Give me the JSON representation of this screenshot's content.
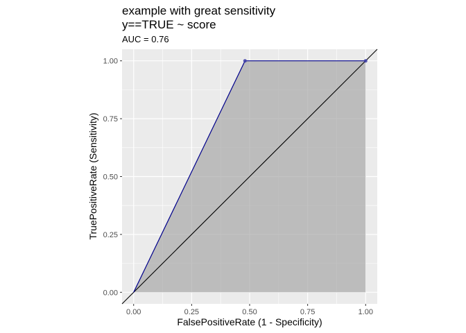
{
  "chart_data": {
    "type": "line",
    "title_lines": [
      "example with great sensitivity",
      "y==TRUE ~ score"
    ],
    "subtitle": "AUC = 0.76",
    "xlabel": "FalsePositiveRate (1 - Specificity)",
    "ylabel": "TruePositiveRate (Sensitivity)",
    "xlim": [
      -0.05,
      1.05
    ],
    "ylim": [
      -0.05,
      1.05
    ],
    "x_ticks": [
      0,
      0.25,
      0.5,
      0.75,
      1
    ],
    "y_ticks": [
      0,
      0.25,
      0.5,
      0.75,
      1
    ],
    "x_tick_labels": [
      "0.00",
      "0.25",
      "0.50",
      "0.75",
      "1.00"
    ],
    "y_tick_labels": [
      "0.00",
      "0.25",
      "0.50",
      "0.75",
      "1.00"
    ],
    "grid": true,
    "roc_points": [
      {
        "x": 0.0,
        "y": 0.0
      },
      {
        "x": 0.48,
        "y": 1.0
      },
      {
        "x": 1.0,
        "y": 1.0
      }
    ],
    "marked_points": [
      {
        "x": 0.48,
        "y": 1.0
      },
      {
        "x": 1.0,
        "y": 1.0
      }
    ],
    "diagonal": {
      "x": [
        0,
        1
      ],
      "y": [
        0,
        1
      ]
    },
    "colors": {
      "panel_bg": "#EBEBEB",
      "grid": "#FFFFFF",
      "area_fill": "#A8A8A8",
      "roc_line": "#00008B",
      "point": "#3F3FA8",
      "diagonal": "#000000"
    }
  }
}
